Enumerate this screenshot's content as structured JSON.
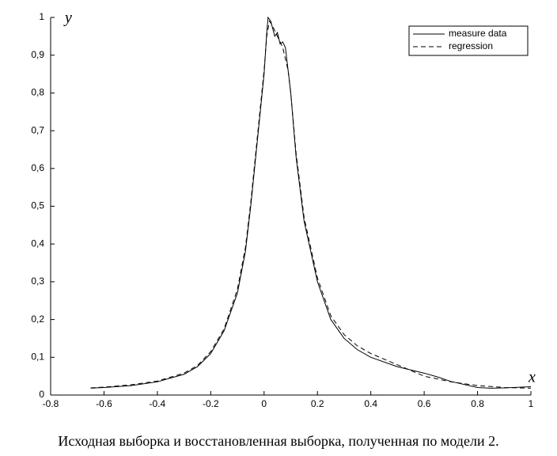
{
  "chart_data": {
    "type": "line",
    "x_label": "x",
    "y_label": "y",
    "caption": "Исходная выборка и восстановленная выборка, полученная по модели 2.",
    "xlim": [
      -0.8,
      1
    ],
    "ylim": [
      0,
      1
    ],
    "xticks": [
      -0.8,
      -0.6,
      -0.4,
      -0.2,
      0,
      0.2,
      0.4,
      0.6,
      0.8,
      1
    ],
    "yticks": [
      {
        "value": 0,
        "label": "0"
      },
      {
        "value": 0.1,
        "label": "0,1"
      },
      {
        "value": 0.2,
        "label": "0,2"
      },
      {
        "value": 0.3,
        "label": "0,3"
      },
      {
        "value": 0.4,
        "label": "0,4"
      },
      {
        "value": 0.5,
        "label": "0,5"
      },
      {
        "value": 0.6,
        "label": "0,6"
      },
      {
        "value": 0.7,
        "label": "0,7"
      },
      {
        "value": 0.8,
        "label": "0,8"
      },
      {
        "value": 0.9,
        "label": "0,9"
      },
      {
        "value": 1,
        "label": "1"
      }
    ],
    "legend": "upper right",
    "series": [
      {
        "name": "measure data",
        "color": "#000000",
        "dash": "solid",
        "x": [
          -0.65,
          -0.6,
          -0.5,
          -0.4,
          -0.3,
          -0.25,
          -0.2,
          -0.15,
          -0.1,
          -0.07,
          -0.05,
          -0.03,
          -0.01,
          0,
          0.01,
          0.015,
          0.025,
          0.04,
          0.05,
          0.06,
          0.07,
          0.08,
          0.1,
          0.12,
          0.15,
          0.2,
          0.25,
          0.3,
          0.35,
          0.4,
          0.5,
          0.6,
          0.65,
          0.7,
          0.8,
          0.85,
          0.9,
          1
        ],
        "values": [
          0.018,
          0.02,
          0.025,
          0.035,
          0.055,
          0.075,
          0.11,
          0.17,
          0.27,
          0.38,
          0.5,
          0.64,
          0.78,
          0.85,
          0.96,
          1,
          0.99,
          0.95,
          0.96,
          0.93,
          0.935,
          0.92,
          0.8,
          0.63,
          0.46,
          0.3,
          0.2,
          0.15,
          0.12,
          0.1,
          0.075,
          0.058,
          0.048,
          0.036,
          0.02,
          0.018,
          0.019,
          0.022
        ]
      },
      {
        "name": "regression",
        "color": "#000000",
        "dash": "dashed",
        "x": [
          -0.65,
          -0.6,
          -0.5,
          -0.4,
          -0.3,
          -0.25,
          -0.2,
          -0.15,
          -0.1,
          -0.07,
          -0.05,
          -0.03,
          -0.01,
          0,
          0.01,
          0.02,
          0.03,
          0.05,
          0.07,
          0.09,
          0.1,
          0.12,
          0.15,
          0.2,
          0.25,
          0.3,
          0.35,
          0.4,
          0.5,
          0.6,
          0.7,
          0.8,
          0.9,
          1
        ],
        "values": [
          0.019,
          0.021,
          0.027,
          0.037,
          0.058,
          0.078,
          0.115,
          0.175,
          0.28,
          0.39,
          0.51,
          0.65,
          0.79,
          0.86,
          0.95,
          0.99,
          0.98,
          0.95,
          0.92,
          0.86,
          0.8,
          0.64,
          0.47,
          0.31,
          0.21,
          0.16,
          0.13,
          0.11,
          0.08,
          0.05,
          0.035,
          0.025,
          0.02,
          0.018
        ]
      }
    ]
  }
}
